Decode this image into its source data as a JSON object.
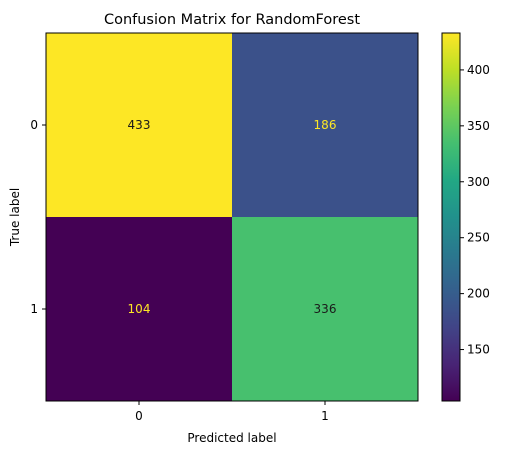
{
  "chart_data": {
    "type": "heatmap",
    "title": "Confusion Matrix for RandomForest",
    "xlabel": "Predicted label",
    "ylabel": "True label",
    "x_categories": [
      "0",
      "1"
    ],
    "y_categories": [
      "0",
      "1"
    ],
    "values": [
      [
        433,
        186
      ],
      [
        104,
        336
      ]
    ],
    "colormap": "viridis",
    "colorbar": {
      "range": [
        104,
        433
      ],
      "ticks": [
        "150",
        "200",
        "250",
        "300",
        "350",
        "400"
      ]
    },
    "cell_text_colors": {
      "dark_cell": "#fde725",
      "light_cell": "#1a1a1a"
    }
  }
}
